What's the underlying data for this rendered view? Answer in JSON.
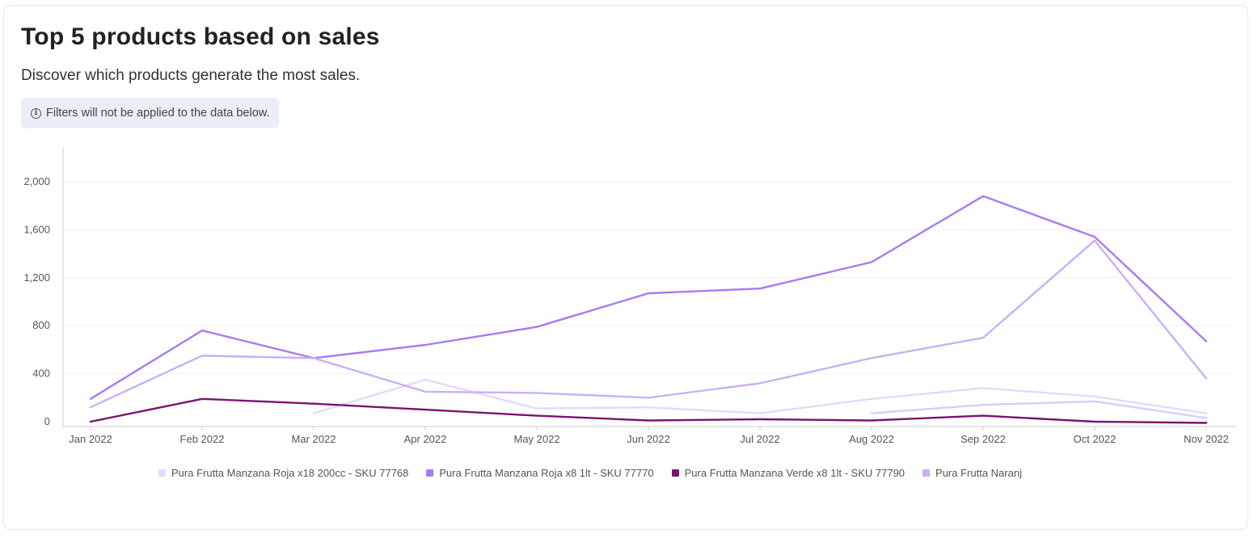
{
  "header": {
    "title": "Top 5 products based on sales",
    "subtitle": "Discover which products generate the most sales.",
    "notice": "Filters will not be applied to the data below.",
    "notice_icon": "info-icon"
  },
  "chart_data": {
    "type": "line",
    "categories": [
      "Jan 2022",
      "Feb 2022",
      "Mar 2022",
      "Apr 2022",
      "May 2022",
      "Jun 2022",
      "Jul 2022",
      "Aug 2022",
      "Sep 2022",
      "Oct 2022",
      "Nov 2022"
    ],
    "yticks": [
      0,
      400,
      800,
      1200,
      1600,
      2000
    ],
    "ytick_labels": [
      "0",
      "400",
      "800",
      "1,200",
      "1,600",
      "2,000"
    ],
    "ylim": [
      0,
      2300
    ],
    "grid": true,
    "legend_position": "bottom",
    "series": [
      {
        "name": "Pura Frutta Manzana Roja x18 200cc - SKU 77768",
        "color": "#e6d8fb",
        "values": [
          null,
          null,
          70,
          350,
          110,
          120,
          70,
          190,
          280,
          210,
          70
        ]
      },
      {
        "name": "Pura Frutta Manzana Roja x8 1lt - SKU 77770",
        "color": "#a87bf1",
        "values": [
          190,
          760,
          530,
          640,
          790,
          1070,
          1110,
          1330,
          1880,
          1540,
          670
        ]
      },
      {
        "name": "Pura Frutta Manzana Verde x8 1lt - SKU 77790",
        "color": "#7a1470",
        "values": [
          0,
          190,
          150,
          100,
          50,
          10,
          20,
          10,
          50,
          0,
          -10
        ]
      },
      {
        "name": "Pura Frutta Naranj",
        "color": "#caaff7",
        "values": [
          120,
          550,
          530,
          250,
          240,
          200,
          320,
          530,
          700,
          1510,
          360
        ]
      },
      {
        "name": "",
        "color": "#dccaf9",
        "values": [
          null,
          null,
          null,
          null,
          null,
          null,
          null,
          70,
          140,
          170,
          30
        ]
      }
    ]
  }
}
